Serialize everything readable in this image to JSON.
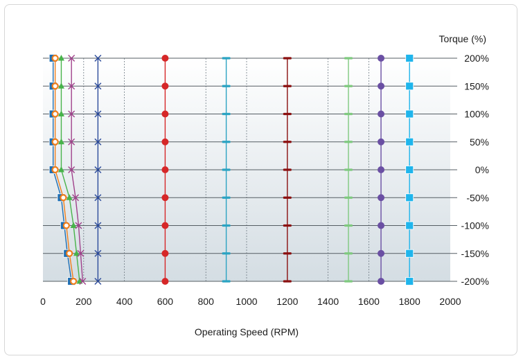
{
  "chart_data": {
    "type": "line",
    "title": "",
    "xlabel": "Operating Speed (RPM)",
    "ylabel": "Torque (%)",
    "xlim": [
      0,
      2000
    ],
    "ylim": [
      -200,
      200
    ],
    "x_ticks": [
      0,
      200,
      400,
      600,
      800,
      1000,
      1200,
      1400,
      1600,
      1800,
      2000
    ],
    "y_ticks": [
      200,
      150,
      100,
      50,
      0,
      -50,
      -100,
      -150,
      -200
    ],
    "y_tick_labels": [
      "200%",
      "150%",
      "100%",
      "50%",
      "0%",
      "-50%",
      "-100%",
      "-150%",
      "-200%"
    ],
    "grid": true,
    "legend": "none",
    "series": [
      {
        "marker": "square",
        "color": "#1f6fb4",
        "points": [
          [
            50,
            200
          ],
          [
            50,
            150
          ],
          [
            50,
            100
          ],
          [
            50,
            50
          ],
          [
            50,
            0
          ],
          [
            90,
            -50
          ],
          [
            105,
            -100
          ],
          [
            120,
            -150
          ],
          [
            140,
            -200
          ]
        ]
      },
      {
        "marker": "circle-open",
        "color": "#f07f1c",
        "points": [
          [
            60,
            200
          ],
          [
            60,
            150
          ],
          [
            60,
            100
          ],
          [
            60,
            50
          ],
          [
            60,
            0
          ],
          [
            100,
            -50
          ],
          [
            115,
            -100
          ],
          [
            130,
            -150
          ],
          [
            150,
            -200
          ]
        ]
      },
      {
        "marker": "triangle",
        "color": "#47b34a",
        "points": [
          [
            90,
            200
          ],
          [
            90,
            150
          ],
          [
            90,
            100
          ],
          [
            90,
            50
          ],
          [
            90,
            0
          ],
          [
            130,
            -50
          ],
          [
            150,
            -100
          ],
          [
            165,
            -150
          ],
          [
            180,
            -200
          ]
        ]
      },
      {
        "marker": "x",
        "color": "#a0418b",
        "points": [
          [
            140,
            200
          ],
          [
            140,
            150
          ],
          [
            140,
            100
          ],
          [
            140,
            50
          ],
          [
            140,
            0
          ],
          [
            160,
            -50
          ],
          [
            175,
            -100
          ],
          [
            185,
            -150
          ],
          [
            195,
            -200
          ]
        ]
      },
      {
        "marker": "x",
        "color": "#2b4a9a",
        "points": [
          [
            270,
            200
          ],
          [
            270,
            150
          ],
          [
            270,
            100
          ],
          [
            270,
            50
          ],
          [
            270,
            0
          ],
          [
            270,
            -50
          ],
          [
            270,
            -100
          ],
          [
            270,
            -150
          ],
          [
            270,
            -200
          ]
        ]
      },
      {
        "marker": "circle",
        "color": "#d62728",
        "points": [
          [
            600,
            200
          ],
          [
            600,
            150
          ],
          [
            600,
            100
          ],
          [
            600,
            50
          ],
          [
            600,
            0
          ],
          [
            600,
            -50
          ],
          [
            600,
            -100
          ],
          [
            600,
            -150
          ],
          [
            600,
            -200
          ]
        ]
      },
      {
        "marker": "dash",
        "color": "#2ba3c2",
        "points": [
          [
            900,
            200
          ],
          [
            900,
            150
          ],
          [
            900,
            100
          ],
          [
            900,
            50
          ],
          [
            900,
            0
          ],
          [
            900,
            -50
          ],
          [
            900,
            -100
          ],
          [
            900,
            -150
          ],
          [
            900,
            -200
          ]
        ]
      },
      {
        "marker": "dash",
        "color": "#8b1010",
        "points": [
          [
            1200,
            200
          ],
          [
            1200,
            150
          ],
          [
            1200,
            100
          ],
          [
            1200,
            50
          ],
          [
            1200,
            0
          ],
          [
            1200,
            -50
          ],
          [
            1200,
            -100
          ],
          [
            1200,
            -150
          ],
          [
            1200,
            -200
          ]
        ]
      },
      {
        "marker": "dash",
        "color": "#7fc97f",
        "points": [
          [
            1500,
            200
          ],
          [
            1500,
            150
          ],
          [
            1500,
            100
          ],
          [
            1500,
            50
          ],
          [
            1500,
            0
          ],
          [
            1500,
            -50
          ],
          [
            1500,
            -100
          ],
          [
            1500,
            -150
          ],
          [
            1500,
            -200
          ]
        ]
      },
      {
        "marker": "circle",
        "color": "#6a4fa3",
        "points": [
          [
            1660,
            200
          ],
          [
            1660,
            150
          ],
          [
            1660,
            100
          ],
          [
            1660,
            50
          ],
          [
            1660,
            0
          ],
          [
            1660,
            -50
          ],
          [
            1660,
            -100
          ],
          [
            1660,
            -150
          ],
          [
            1660,
            -200
          ]
        ]
      },
      {
        "marker": "square",
        "color": "#1fb5ec",
        "points": [
          [
            1800,
            200
          ],
          [
            1800,
            150
          ],
          [
            1800,
            100
          ],
          [
            1800,
            50
          ],
          [
            1800,
            0
          ],
          [
            1800,
            -50
          ],
          [
            1800,
            -100
          ],
          [
            1800,
            -150
          ],
          [
            1800,
            -200
          ]
        ]
      }
    ]
  }
}
